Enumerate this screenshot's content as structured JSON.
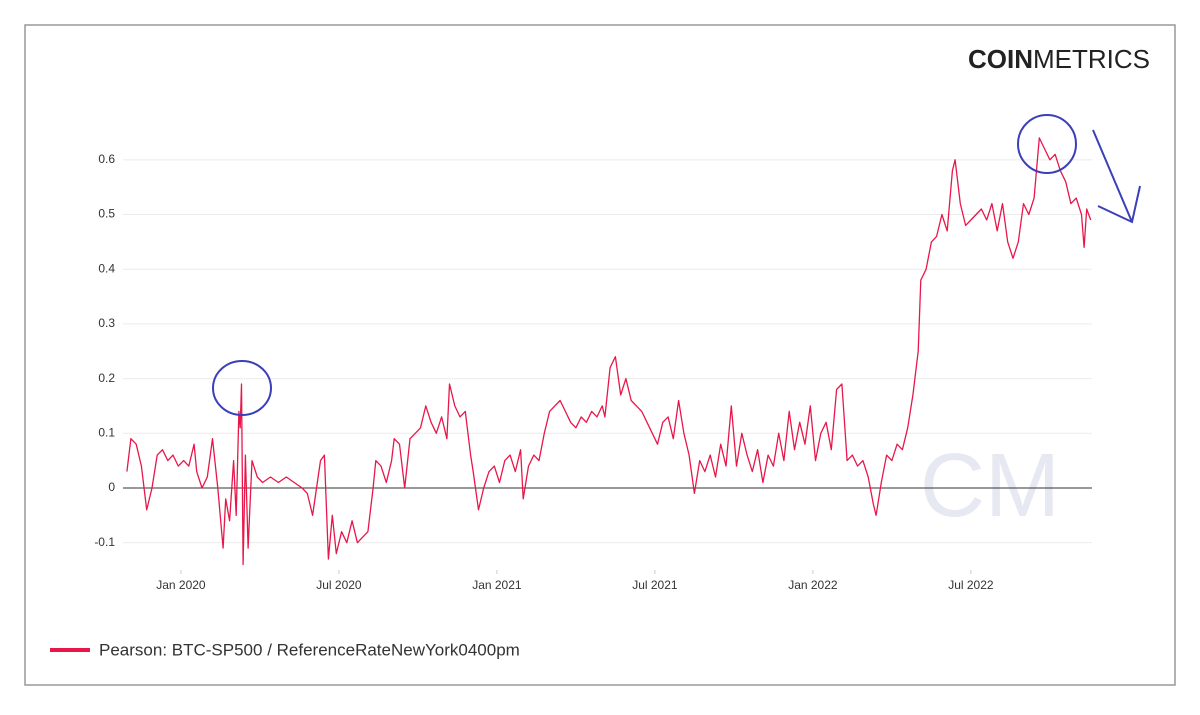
{
  "brand": {
    "bold": "COIN",
    "light": "METRICS"
  },
  "watermark": "CM",
  "chart_data": {
    "type": "line",
    "x": [
      -2.05,
      -1.9,
      -1.7,
      -1.5,
      -1.3,
      -1.1,
      -0.9,
      -0.7,
      -0.5,
      -0.3,
      -0.1,
      0.1,
      0.3,
      0.5,
      0.6,
      0.8,
      1.0,
      1.2,
      1.4,
      1.6,
      1.7,
      1.85,
      2.0,
      2.1,
      2.2,
      2.25,
      2.3,
      2.36,
      2.45,
      2.55,
      2.7,
      2.9,
      3.1,
      3.4,
      3.7,
      4.0,
      4.3,
      4.6,
      4.8,
      5.0,
      5.3,
      5.45,
      5.6,
      5.75,
      5.9,
      6.1,
      6.3,
      6.5,
      6.7,
      6.9,
      7.1,
      7.3,
      7.4,
      7.6,
      7.8,
      8.0,
      8.1,
      8.3,
      8.5,
      8.7,
      8.9,
      9.1,
      9.3,
      9.5,
      9.7,
      9.9,
      10.1,
      10.2,
      10.4,
      10.6,
      10.8,
      11.0,
      11.1,
      11.3,
      11.5,
      11.7,
      11.9,
      12.1,
      12.3,
      12.5,
      12.7,
      12.9,
      13.0,
      13.2,
      13.4,
      13.6,
      13.8,
      14.0,
      14.2,
      14.4,
      14.6,
      14.8,
      15.0,
      15.2,
      15.4,
      15.6,
      15.8,
      16.0,
      16.1,
      16.3,
      16.5,
      16.7,
      16.9,
      17.1,
      17.3,
      17.5,
      17.7,
      17.9,
      18.1,
      18.3,
      18.5,
      18.7,
      18.9,
      19.1,
      19.3,
      19.5,
      19.7,
      19.9,
      20.1,
      20.3,
      20.5,
      20.7,
      20.9,
      21.1,
      21.3,
      21.5,
      21.7,
      21.9,
      22.1,
      22.3,
      22.5,
      22.7,
      22.9,
      23.1,
      23.3,
      23.5,
      23.7,
      23.9,
      24.1,
      24.3,
      24.5,
      24.7,
      24.9,
      25.1,
      25.3,
      25.5,
      25.7,
      25.9,
      26.1,
      26.3,
      26.4,
      26.6,
      26.8,
      27.0,
      27.2,
      27.4,
      27.6,
      27.8,
      28.0,
      28.1,
      28.3,
      28.5,
      28.7,
      28.9,
      29.1,
      29.3,
      29.4,
      29.6,
      29.8,
      30.0,
      30.2,
      30.4,
      30.6,
      30.8,
      31.0,
      31.2,
      31.4,
      31.6,
      31.8,
      32.0,
      32.2,
      32.4,
      32.6,
      32.8,
      33.0,
      33.2,
      33.4,
      33.6,
      33.8,
      34.0,
      34.2,
      34.3,
      34.4,
      34.55
    ],
    "series": [
      {
        "name": "Pearson: BTC-SP500 / ReferenceRateNewYork0400pm",
        "color": "#e8174a",
        "values": [
          0.03,
          0.09,
          0.08,
          0.04,
          -0.04,
          0.0,
          0.06,
          0.07,
          0.05,
          0.06,
          0.04,
          0.05,
          0.04,
          0.08,
          0.03,
          0.0,
          0.02,
          0.09,
          0.0,
          -0.11,
          -0.02,
          -0.06,
          0.05,
          -0.05,
          0.14,
          0.11,
          0.19,
          -0.14,
          0.06,
          -0.11,
          0.05,
          0.02,
          0.01,
          0.02,
          0.01,
          0.02,
          0.01,
          0.0,
          -0.01,
          -0.05,
          0.05,
          0.06,
          -0.13,
          -0.05,
          -0.12,
          -0.08,
          -0.1,
          -0.06,
          -0.1,
          -0.09,
          -0.08,
          0.0,
          0.05,
          0.04,
          0.01,
          0.05,
          0.09,
          0.08,
          0.0,
          0.09,
          0.1,
          0.11,
          0.15,
          0.12,
          0.1,
          0.13,
          0.09,
          0.19,
          0.15,
          0.13,
          0.14,
          0.06,
          0.03,
          -0.04,
          0.0,
          0.03,
          0.04,
          0.01,
          0.05,
          0.06,
          0.03,
          0.07,
          -0.02,
          0.04,
          0.06,
          0.05,
          0.1,
          0.14,
          0.15,
          0.16,
          0.14,
          0.12,
          0.11,
          0.13,
          0.12,
          0.14,
          0.13,
          0.15,
          0.13,
          0.22,
          0.24,
          0.17,
          0.2,
          0.16,
          0.15,
          0.14,
          0.12,
          0.1,
          0.08,
          0.12,
          0.13,
          0.09,
          0.16,
          0.1,
          0.06,
          -0.01,
          0.05,
          0.03,
          0.06,
          0.02,
          0.08,
          0.04,
          0.15,
          0.04,
          0.1,
          0.06,
          0.03,
          0.07,
          0.01,
          0.06,
          0.04,
          0.1,
          0.05,
          0.14,
          0.07,
          0.12,
          0.08,
          0.15,
          0.05,
          0.1,
          0.12,
          0.07,
          0.18,
          0.19,
          0.05,
          0.06,
          0.04,
          0.05,
          0.02,
          -0.03,
          -0.05,
          0.01,
          0.06,
          0.05,
          0.08,
          0.07,
          0.11,
          0.17,
          0.25,
          0.38,
          0.4,
          0.45,
          0.46,
          0.5,
          0.47,
          0.58,
          0.6,
          0.52,
          0.48,
          0.49,
          0.5,
          0.51,
          0.49,
          0.52,
          0.47,
          0.52,
          0.45,
          0.42,
          0.45,
          0.52,
          0.5,
          0.53,
          0.64,
          0.62,
          0.6,
          0.61,
          0.58,
          0.56,
          0.52,
          0.53,
          0.5,
          0.44,
          0.51,
          0.49
        ]
      }
    ],
    "xlim": [
      -2.2,
      34.6
    ],
    "xticks": [
      {
        "value": 0,
        "label": "Jan 2020"
      },
      {
        "value": 6,
        "label": "Jul 2020"
      },
      {
        "value": 12,
        "label": "Jan 2021"
      },
      {
        "value": 18,
        "label": "Jul 2021"
      },
      {
        "value": 24,
        "label": "Jan 2022"
      },
      {
        "value": 30,
        "label": "Jul 2022"
      }
    ],
    "ylim": [
      -0.15,
      0.66
    ],
    "yticks": [
      -0.1,
      0,
      0.1,
      0.2,
      0.3,
      0.4,
      0.5,
      0.6
    ],
    "grid": true
  }
}
